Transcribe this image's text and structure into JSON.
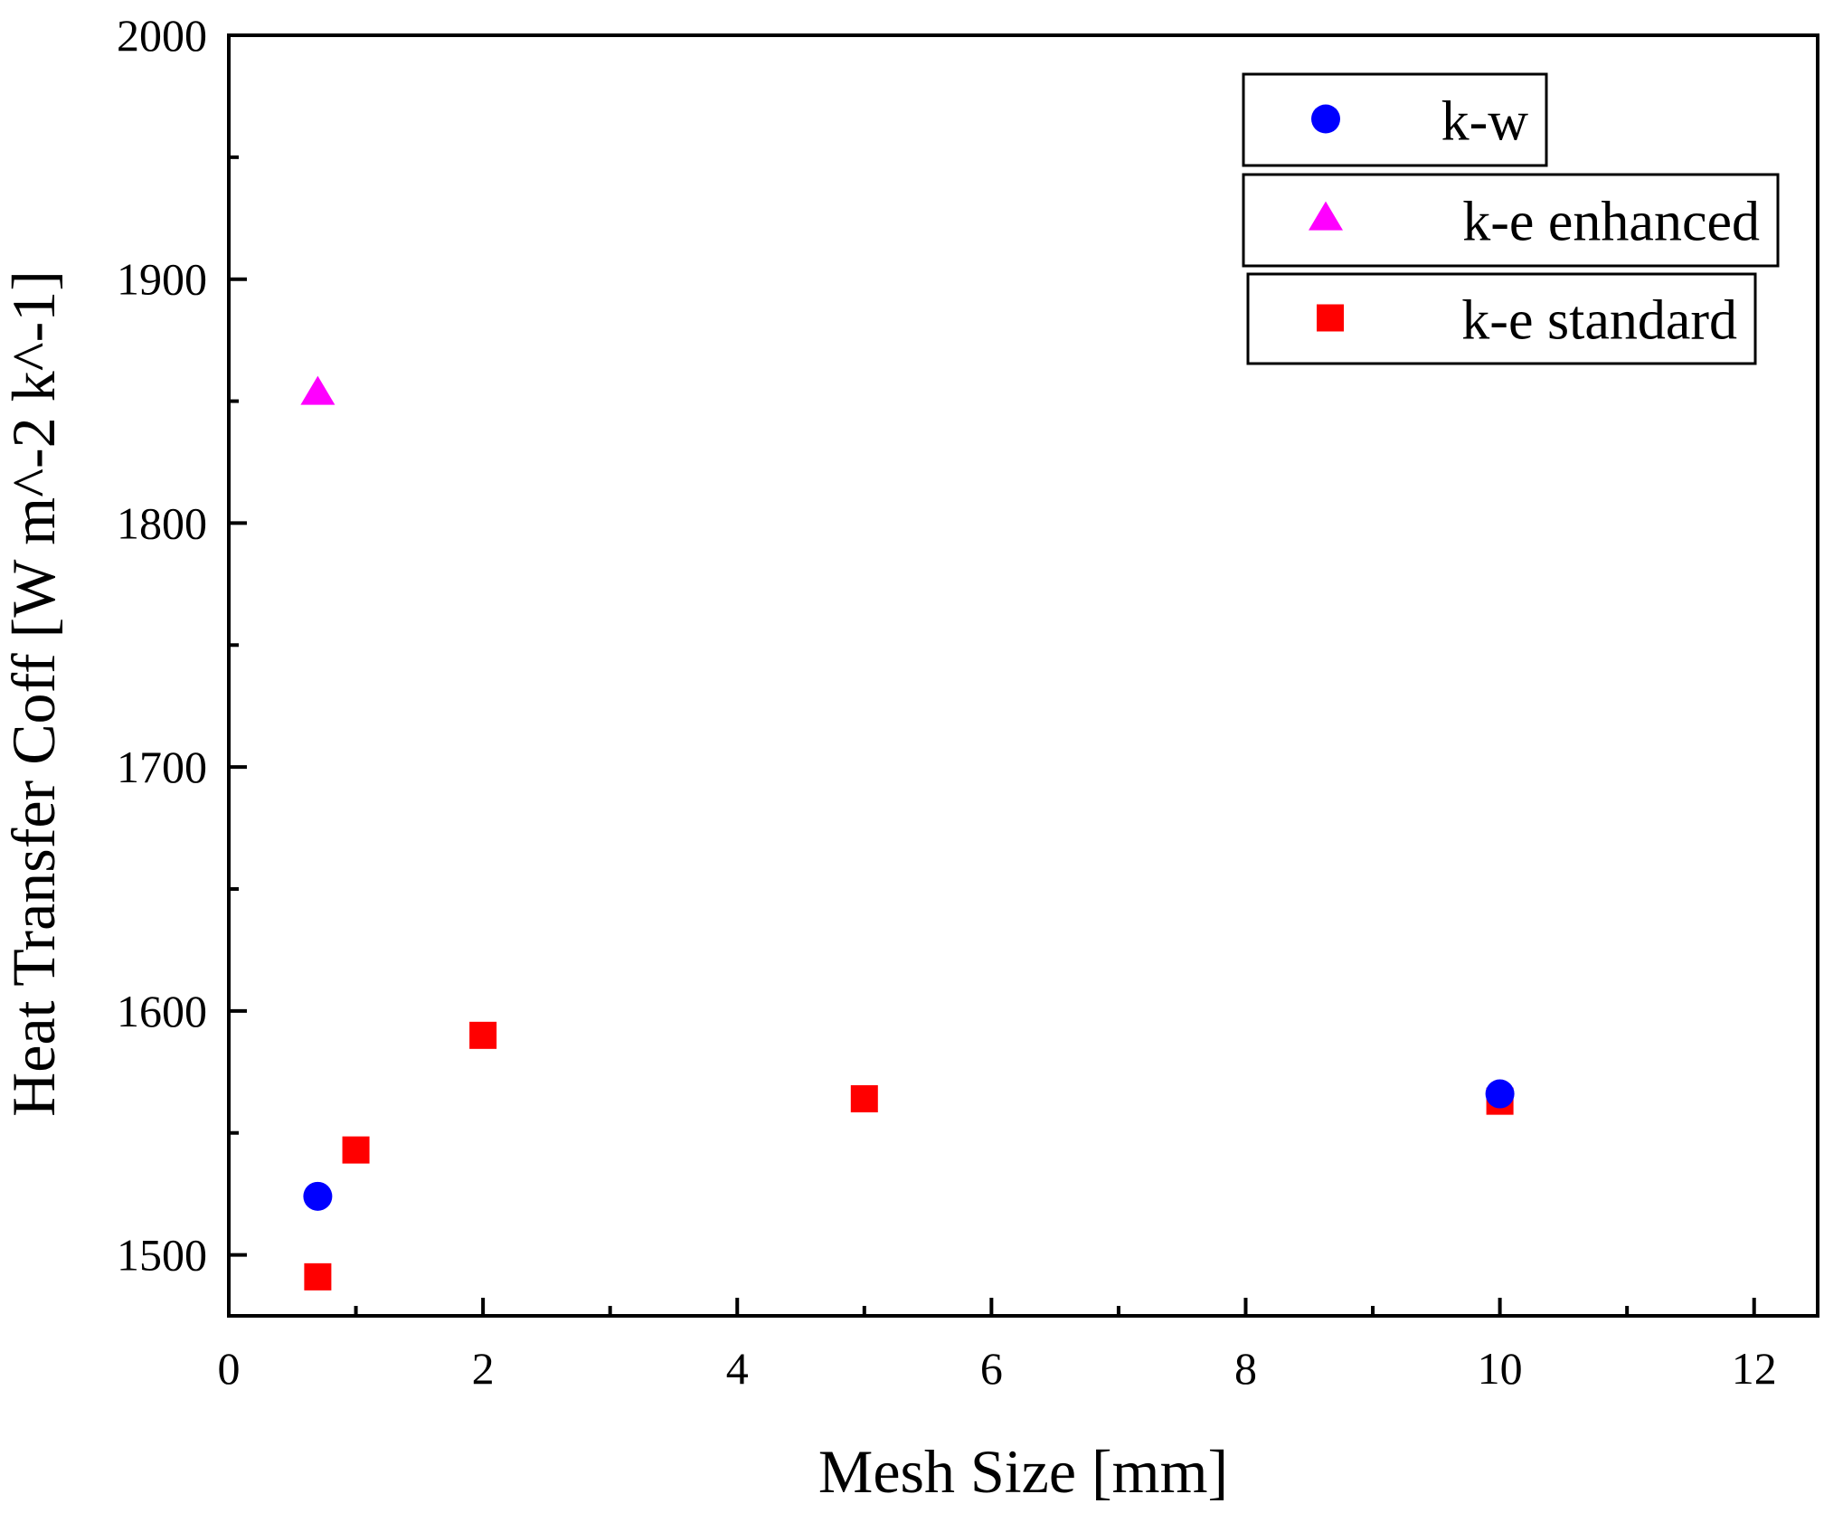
{
  "chart_data": {
    "type": "scatter",
    "title": "",
    "xlabel": "Mesh Size [mm]",
    "ylabel": "Heat Transfer Coff [W m^-2 k^-1]",
    "xlim": [
      0,
      12.5
    ],
    "ylim": [
      1475,
      2000
    ],
    "x_ticks": [
      0,
      2,
      4,
      6,
      8,
      10,
      12
    ],
    "x_tick_labels": [
      "0",
      "2",
      "4",
      "6",
      "8",
      "10",
      "12"
    ],
    "y_ticks": [
      1500,
      1600,
      1700,
      1800,
      1900,
      2000
    ],
    "y_tick_labels": [
      "1500",
      "1600",
      "1700",
      "1800",
      "1900",
      "2000"
    ],
    "grid": false,
    "legend_position": "top-right",
    "series": [
      {
        "name": "k-w",
        "marker": "circle",
        "color": "#0000ff",
        "points": [
          {
            "x": 0.7,
            "y": 1524
          },
          {
            "x": 10,
            "y": 1566
          }
        ]
      },
      {
        "name": "k-e enhanced",
        "marker": "triangle",
        "color": "#ff00ff",
        "points": [
          {
            "x": 0.7,
            "y": 1853
          }
        ]
      },
      {
        "name": "k-e standard",
        "marker": "square",
        "color": "#ff0000",
        "points": [
          {
            "x": 0.7,
            "y": 1491
          },
          {
            "x": 1,
            "y": 1543
          },
          {
            "x": 2,
            "y": 1590
          },
          {
            "x": 5,
            "y": 1564
          },
          {
            "x": 10,
            "y": 1563
          }
        ]
      }
    ]
  }
}
